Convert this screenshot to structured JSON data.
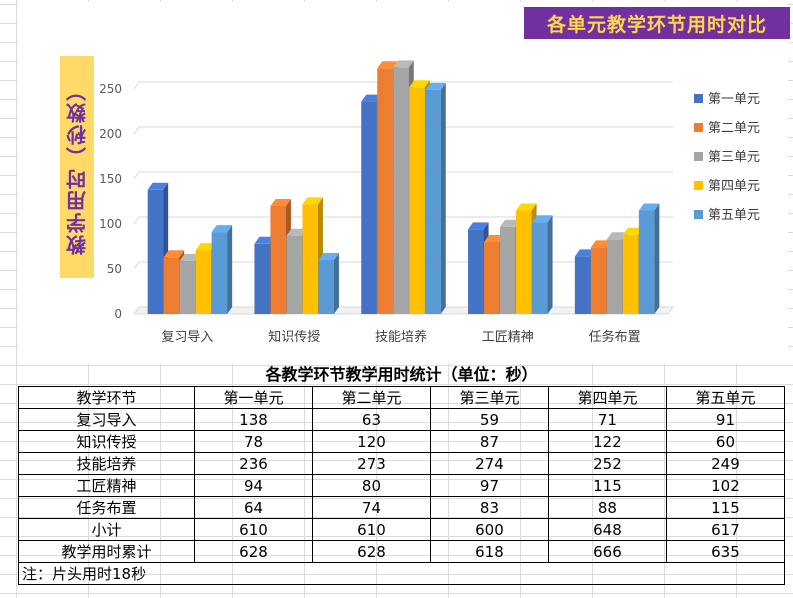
{
  "chart_data": {
    "type": "bar",
    "title": "各单元教学环节用时对比",
    "ylabel": "教学用时（秒数）",
    "xlabel": "",
    "categories": [
      "复习导入",
      "知识传授",
      "技能培养",
      "工匠精神",
      "任务布置"
    ],
    "series": [
      {
        "name": "第一单元",
        "values": [
          138,
          78,
          236,
          94,
          64
        ],
        "color": "#4472c4"
      },
      {
        "name": "第二单元",
        "values": [
          63,
          120,
          273,
          80,
          74
        ],
        "color": "#ed7d31"
      },
      {
        "name": "第三单元",
        "values": [
          59,
          87,
          274,
          97,
          83
        ],
        "color": "#a5a5a5"
      },
      {
        "name": "第四单元",
        "values": [
          71,
          122,
          252,
          115,
          88
        ],
        "color": "#ffc000"
      },
      {
        "name": "第五单元",
        "values": [
          91,
          60,
          249,
          102,
          115
        ],
        "color": "#5b9bd5"
      }
    ],
    "ylim": [
      0,
      250
    ],
    "yticks": [
      "0",
      "50",
      "100",
      "150",
      "200",
      "250"
    ],
    "grid": true,
    "legend": "right",
    "style": "3d-clustered-bar"
  },
  "table": {
    "title": "各教学环节教学用时统计（单位：秒）",
    "headers": [
      "教学环节",
      "第一单元",
      "第二单元",
      "第三单元",
      "第四单元",
      "第五单元"
    ],
    "rows": [
      [
        "复习导入",
        "138",
        "63",
        "59",
        "71",
        "91"
      ],
      [
        "知识传授",
        "78",
        "120",
        "87",
        "122",
        "60"
      ],
      [
        "技能培养",
        "236",
        "273",
        "274",
        "252",
        "249"
      ],
      [
        "工匠精神",
        "94",
        "80",
        "97",
        "115",
        "102"
      ],
      [
        "任务布置",
        "64",
        "74",
        "83",
        "88",
        "115"
      ],
      [
        "小计",
        "610",
        "610",
        "600",
        "648",
        "617"
      ],
      [
        "教学用时累计",
        "628",
        "628",
        "618",
        "666",
        "635"
      ]
    ],
    "note": "注：片头用时18秒"
  },
  "colors": {
    "title_bg": "#7030a0",
    "title_text": "#ffd54a",
    "ylabel_bg": "#ffd966",
    "ylabel_text": "#7030a0"
  }
}
